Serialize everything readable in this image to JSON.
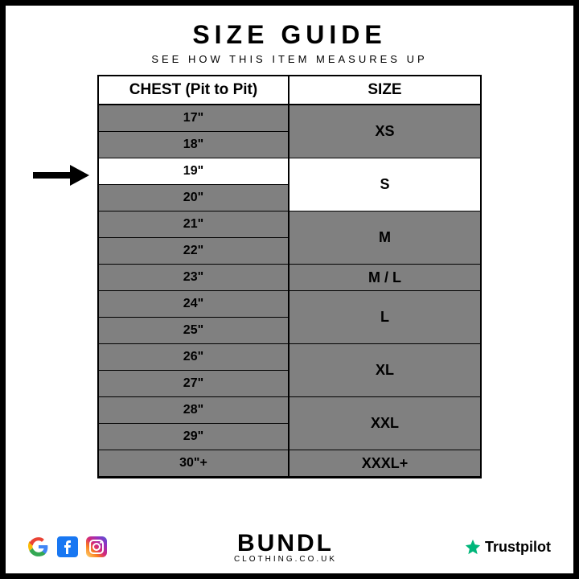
{
  "title": "SIZE GUIDE",
  "subtitle": "SEE HOW THIS ITEM MEASURES UP",
  "table": {
    "col_header_left": "CHEST (Pit to Pit)",
    "col_header_right": "SIZE",
    "colors": {
      "gray": "#808080",
      "white": "#ffffff",
      "border": "#000000"
    },
    "highlighted_row_index": 2,
    "groups": [
      {
        "chest": [
          "17\"",
          "18\""
        ],
        "size": "XS",
        "chest_bg": [
          "gray",
          "gray"
        ],
        "size_bg": "gray"
      },
      {
        "chest": [
          "19\"",
          "20\""
        ],
        "size": "S",
        "chest_bg": [
          "white",
          "gray"
        ],
        "size_bg": "white"
      },
      {
        "chest": [
          "21\"",
          "22\""
        ],
        "size": "M",
        "chest_bg": [
          "gray",
          "gray"
        ],
        "size_bg": "gray"
      },
      {
        "chest": [
          "23\""
        ],
        "size": "M / L",
        "chest_bg": [
          "gray"
        ],
        "size_bg": "gray"
      },
      {
        "chest": [
          "24\"",
          "25\""
        ],
        "size": "L",
        "chest_bg": [
          "gray",
          "gray"
        ],
        "size_bg": "gray"
      },
      {
        "chest": [
          "26\"",
          "27\""
        ],
        "size": "XL",
        "chest_bg": [
          "gray",
          "gray"
        ],
        "size_bg": "gray"
      },
      {
        "chest": [
          "28\"",
          "29\""
        ],
        "size": "XXL",
        "chest_bg": [
          "gray",
          "gray"
        ],
        "size_bg": "gray"
      },
      {
        "chest": [
          "30\"+"
        ],
        "size": "XXXL+",
        "chest_bg": [
          "gray"
        ],
        "size_bg": "gray"
      }
    ]
  },
  "brand": {
    "main": "BUNDL",
    "sub": "CLOTHING.CO.UK"
  },
  "trustpilot": {
    "label": "Trustpilot",
    "star_color": "#00b67a"
  },
  "social": {
    "google": {
      "colors": [
        "#4285F4",
        "#EA4335",
        "#FBBC05",
        "#34A853"
      ]
    },
    "facebook": {
      "bg": "#1877F2"
    },
    "instagram": {
      "colors": [
        "#feda75",
        "#fa7e1e",
        "#d62976",
        "#962fbf",
        "#4f5bd5"
      ]
    }
  }
}
